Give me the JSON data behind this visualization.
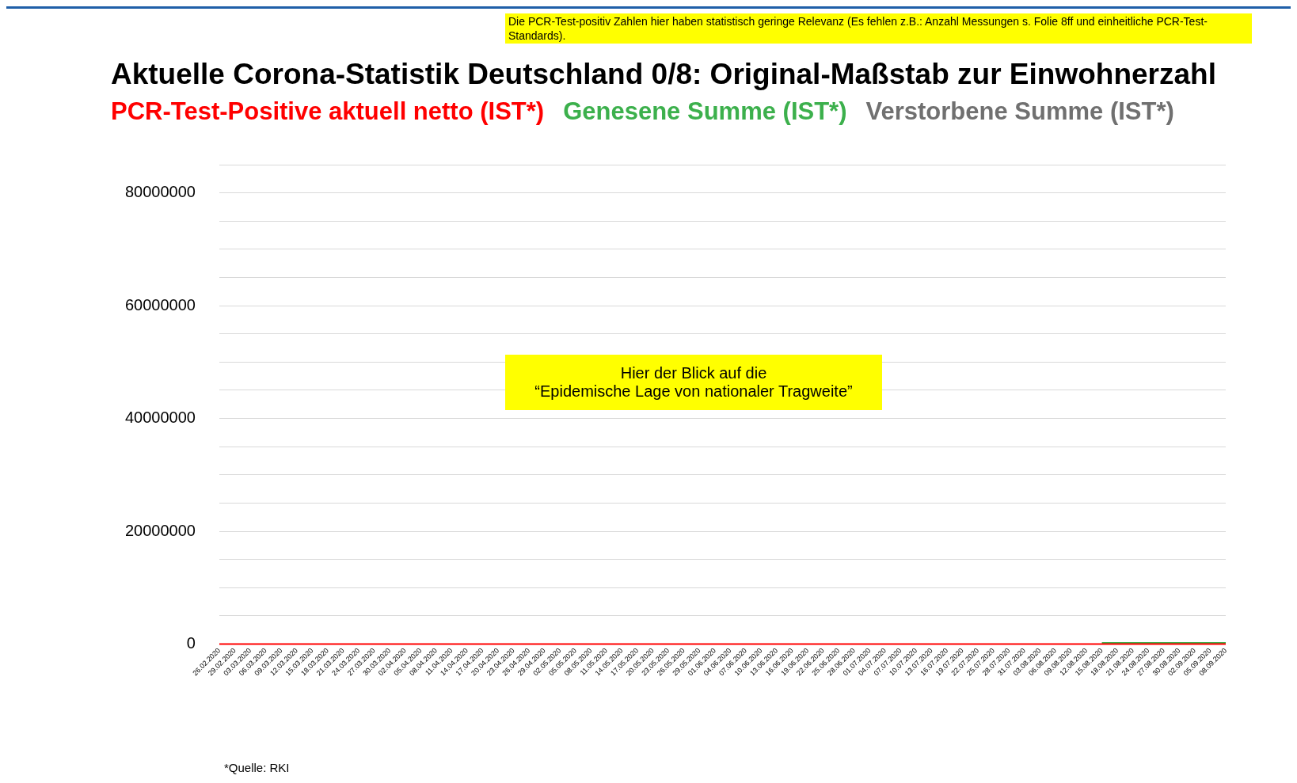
{
  "chart_data": {
    "type": "line",
    "title": "Aktuelle Corona-Statistik Deutschland 0/8: Original-Maßstab zur Einwohnerzahl",
    "categories": [
      "26.02.2020",
      "29.02.2020",
      "03.03.2020",
      "06.03.2020",
      "09.03.2020",
      "12.03.2020",
      "15.03.2020",
      "18.03.2020",
      "21.03.2020",
      "24.03.2020",
      "27.03.2020",
      "30.03.2020",
      "02.04.2020",
      "05.04.2020",
      "08.04.2020",
      "11.04.2020",
      "14.04.2020",
      "17.04.2020",
      "20.04.2020",
      "23.04.2020",
      "26.04.2020",
      "29.04.2020",
      "02.05.2020",
      "05.05.2020",
      "08.05.2020",
      "11.05.2020",
      "14.05.2020",
      "17.05.2020",
      "20.05.2020",
      "23.05.2020",
      "26.05.2020",
      "29.05.2020",
      "01.06.2020",
      "04.06.2020",
      "07.06.2020",
      "10.06.2020",
      "13.06.2020",
      "16.06.2020",
      "19.06.2020",
      "22.06.2020",
      "25.06.2020",
      "28.06.2020",
      "01.07.2020",
      "04.07.2020",
      "07.07.2020",
      "10.07.2020",
      "13.07.2020",
      "16.07.2020",
      "19.07.2020",
      "22.07.2020",
      "25.07.2020",
      "28.07.2020",
      "31.07.2020",
      "03.08.2020",
      "06.08.2020",
      "09.08.2020",
      "12.08.2020",
      "15.08.2020",
      "18.08.2020",
      "21.08.2020",
      "24.08.2020",
      "27.08.2020",
      "30.08.2020",
      "02.09.2020",
      "05.09.2020",
      "08.09.2020"
    ],
    "series": [
      {
        "name": "PCR-Test-Positive aktuell netto (IST*)",
        "color": "#ff0000",
        "values": [
          0,
          0,
          0,
          0,
          0,
          0,
          0,
          0,
          0,
          0,
          0,
          0,
          0,
          0,
          0,
          0,
          0,
          0,
          0,
          0,
          0,
          0,
          0,
          0,
          0,
          0,
          0,
          0,
          0,
          0,
          0,
          0,
          0,
          0,
          0,
          0,
          0,
          0,
          0,
          0,
          0,
          0,
          0,
          0,
          0,
          0,
          0,
          0,
          0,
          0,
          0,
          0,
          0,
          0,
          0,
          0,
          0,
          0,
          0,
          0,
          0,
          0,
          0,
          0,
          0,
          0
        ]
      },
      {
        "name": "Genesene Summe (IST*)",
        "color": "#3cb04c",
        "values": [
          null,
          null,
          null,
          null,
          null,
          null,
          null,
          null,
          null,
          null,
          null,
          null,
          null,
          null,
          null,
          null,
          null,
          null,
          null,
          null,
          null,
          null,
          null,
          null,
          null,
          null,
          null,
          null,
          null,
          null,
          null,
          null,
          null,
          null,
          null,
          null,
          null,
          null,
          null,
          null,
          null,
          null,
          null,
          null,
          null,
          null,
          null,
          null,
          null,
          null,
          null,
          null,
          null,
          null,
          null,
          null,
          null,
          200000,
          200000,
          200000,
          200000,
          200000,
          200000,
          200000,
          200000,
          200000
        ]
      },
      {
        "name": "Verstorbene Summe (IST*)",
        "color": "#707070",
        "values": [
          null,
          null,
          null,
          null,
          null,
          null,
          null,
          null,
          null,
          null,
          null,
          null,
          null,
          null,
          null,
          null,
          null,
          null,
          null,
          null,
          null,
          null,
          null,
          null,
          null,
          null,
          null,
          null,
          null,
          null,
          null,
          null,
          null,
          null,
          null,
          null,
          null,
          null,
          null,
          null,
          null,
          null,
          null,
          null,
          null,
          null,
          null,
          null,
          null,
          null,
          null,
          null,
          null,
          null,
          null,
          null,
          null,
          null,
          null,
          null,
          null,
          null,
          null,
          null,
          null,
          null
        ]
      }
    ],
    "ylim": [
      0,
      85000000
    ],
    "yticks": [
      0,
      {
        "value": 5000000,
        "label": null
      },
      {
        "value": 10000000,
        "label": null
      },
      {
        "value": 15000000,
        "label": null
      },
      20000000,
      {
        "value": 25000000,
        "label": null
      },
      {
        "value": 30000000,
        "label": null
      },
      {
        "value": 35000000,
        "label": null
      },
      40000000,
      {
        "value": 45000000,
        "label": null
      },
      {
        "value": 50000000,
        "label": null
      },
      {
        "value": 55000000,
        "label": null
      },
      60000000,
      {
        "value": 65000000,
        "label": null
      },
      {
        "value": 70000000,
        "label": null
      },
      {
        "value": 75000000,
        "label": null
      },
      80000000,
      {
        "value": 85000000,
        "label": null
      }
    ],
    "grid": "y",
    "legend": "top",
    "marker": "none",
    "line_style": "solid",
    "annotations": [
      "Die PCR-Test-positiv Zahlen hier haben statistisch geringe Relevanz (Es fehlen z.B.: Anzahl Messungen s. Folie 8ff und einheitliche PCR-Test-Standards).",
      "Hier der Blick auf die\n“Epidemische Lage von nationaler Tragweite”",
      "*Quelle: RKI"
    ]
  }
}
